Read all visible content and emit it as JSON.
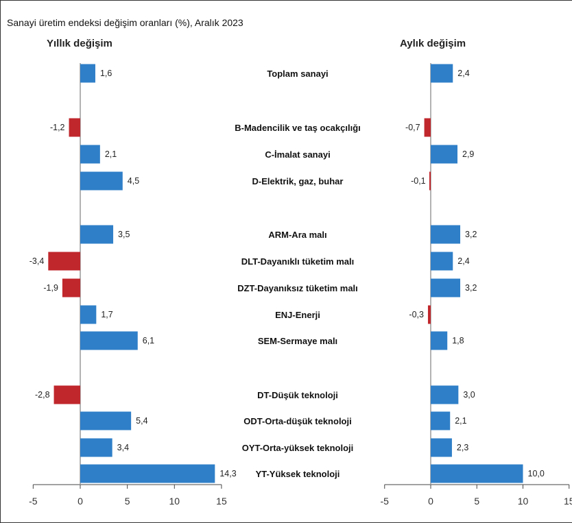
{
  "chart_data": {
    "type": "bar",
    "orientation": "horizontal",
    "title": "Sanayi üretim endeksi değişim oranları (%), Aralık 2023",
    "categories": [
      "Toplam sanayi",
      "B-Madencilik ve taş ocakçılığı",
      "C-İmalat sanayi",
      "D-Elektrik, gaz, buhar",
      "ARM-Ara malı",
      "DLT-Dayanıklı tüketim malı",
      "DZT-Dayanıksız tüketim malı",
      "ENJ-Enerji",
      "SEM-Sermaye malı",
      "DT-Düşük teknoloji",
      "ODT-Orta-düşük teknoloji",
      "OYT-Orta-yüksek teknoloji",
      "YT-Yüksek teknoloji"
    ],
    "panels": [
      {
        "title": "Yıllık değişim",
        "values": [
          1.6,
          -1.2,
          2.1,
          4.5,
          3.5,
          -3.4,
          -1.9,
          1.7,
          6.1,
          -2.8,
          5.4,
          3.4,
          14.3
        ],
        "labels": [
          "1,6",
          "-1,2",
          "2,1",
          "4,5",
          "3,5",
          "-3,4",
          "-1,9",
          "1,7",
          "6,1",
          "-2,8",
          "5,4",
          "3,4",
          "14,3"
        ],
        "xlim": [
          -5,
          15
        ],
        "ticks": [
          "-5",
          "0",
          "5",
          "10",
          "15"
        ]
      },
      {
        "title": "Aylık değişim",
        "values": [
          2.4,
          -0.7,
          2.9,
          -0.1,
          3.2,
          2.4,
          3.2,
          -0.3,
          1.8,
          3.0,
          2.1,
          2.3,
          10.0
        ],
        "labels": [
          "2,4",
          "-0,7",
          "2,9",
          "-0,1",
          "3,2",
          "2,4",
          "3,2",
          "-0,3",
          "1,8",
          "3,0",
          "2,1",
          "2,3",
          "10,0"
        ],
        "xlim": [
          -5,
          15
        ],
        "ticks": [
          "-5",
          "0",
          "5",
          "10",
          "15"
        ]
      }
    ],
    "colors": {
      "positive": "#2f7fc8",
      "negative": "#c0272d"
    },
    "grid": false
  }
}
